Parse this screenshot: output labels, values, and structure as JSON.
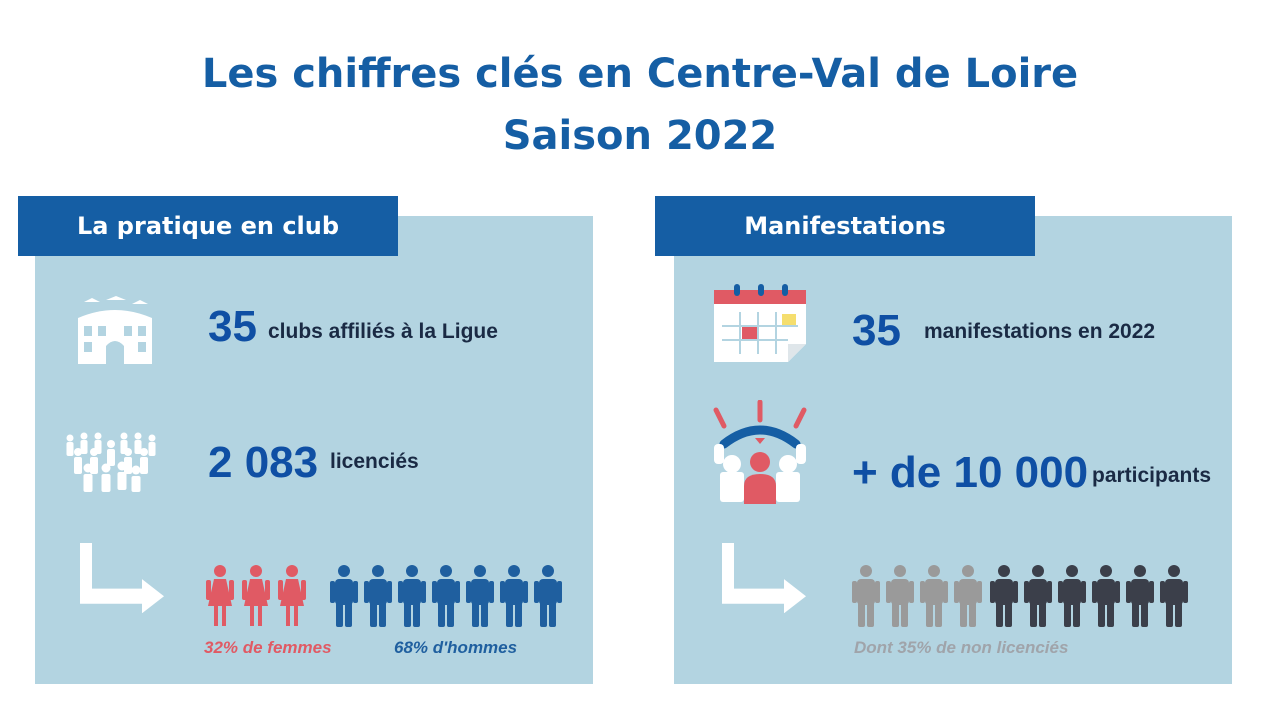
{
  "title": {
    "line1": "Les chiffres clés en Centre-Val de Loire",
    "line2": "Saison 2022"
  },
  "left": {
    "tab": "La pratique en club",
    "stats": [
      {
        "value": "35",
        "label": "clubs affiliés à la Ligue",
        "icon": "building-icon"
      },
      {
        "value": "2 083",
        "label": "licenciés",
        "icon": "crowd-icon"
      }
    ],
    "split": {
      "icon": "arrow-down-right-icon",
      "women_count": 3,
      "men_count": 7,
      "women_label": "32% de femmes",
      "men_label": "68% d'hommes"
    }
  },
  "right": {
    "tab": "Manifestations",
    "stats": [
      {
        "value": "35",
        "label": "manifestations en 2022",
        "icon": "calendar-icon"
      },
      {
        "value": "+ de 10 000",
        "label": "participants",
        "icon": "cheering-people-icon"
      }
    ],
    "split": {
      "icon": "arrow-down-right-icon",
      "grey_count": 4,
      "dark_count": 6,
      "note": "Dont 35% de non licenciés"
    }
  },
  "colors": {
    "title": "#155ea4",
    "tab_bg": "#155ea4",
    "panel_bg": "#b3d4e1",
    "number": "#0f4fa4",
    "women": "#e05a64",
    "men": "#1f5f9f",
    "grey_figure": "#9a9a9a",
    "dark_figure": "#3b3f4a"
  }
}
